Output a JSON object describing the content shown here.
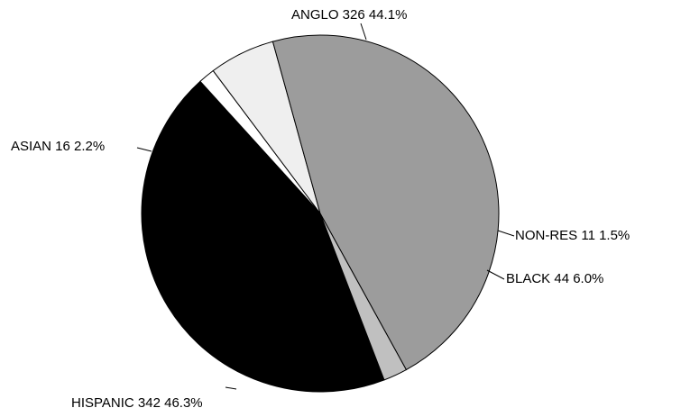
{
  "chart_data": {
    "type": "pie",
    "title": "",
    "slices": [
      {
        "label": "ANGLO",
        "value": 326,
        "percent": "44.1%",
        "color": "#000000"
      },
      {
        "label": "NON-RES",
        "value": 11,
        "percent": "1.5%",
        "color": "#ffffff"
      },
      {
        "label": "BLACK",
        "value": 44,
        "percent": "6.0%",
        "color": "#efefef"
      },
      {
        "label": "HISPANIC",
        "value": 342,
        "percent": "46.3%",
        "color": "#9c9c9c"
      },
      {
        "label": "ASIAN",
        "value": 16,
        "percent": "2.2%",
        "color": "#c0c0c0"
      }
    ],
    "legend": "none",
    "grid": false
  }
}
